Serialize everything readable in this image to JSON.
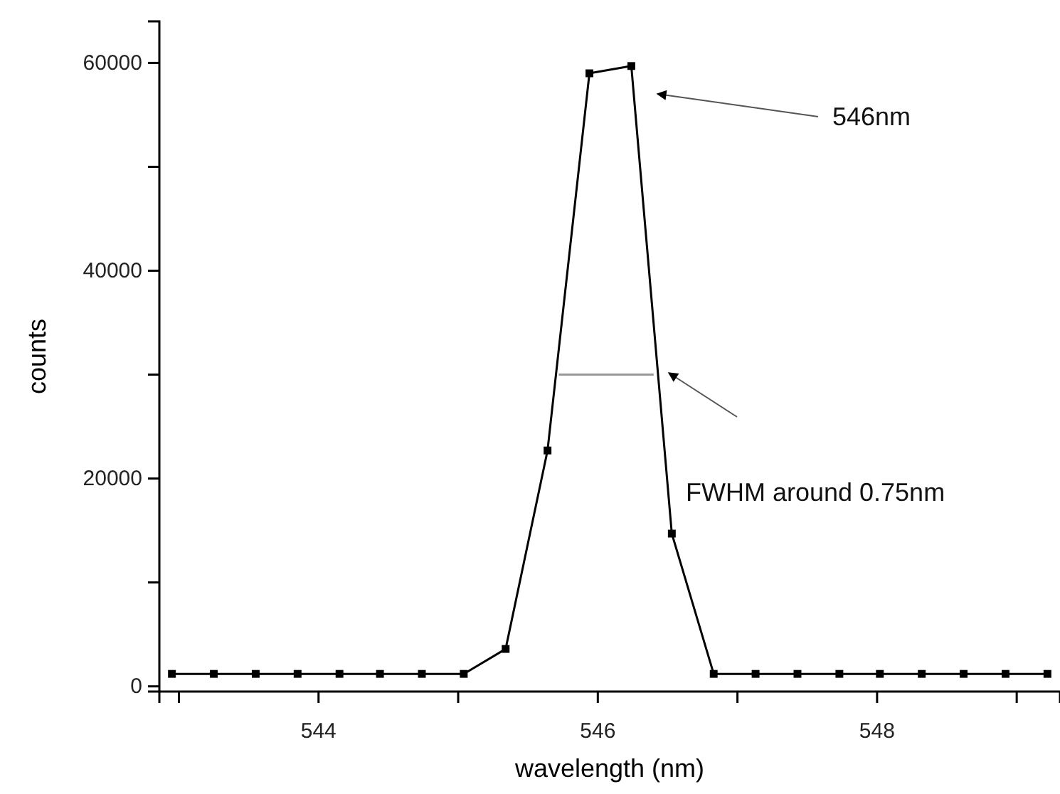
{
  "chart_data": {
    "type": "line",
    "xlabel": "wavelength (nm)",
    "ylabel": "counts",
    "xlim": [
      542.86,
      549.31
    ],
    "ylim": [
      -500,
      64000
    ],
    "xticks": [
      {
        "value": 543,
        "label": null
      },
      544,
      {
        "value": 545,
        "label": null
      },
      546,
      {
        "value": 547,
        "label": null
      },
      548,
      {
        "value": 549,
        "label": null
      }
    ],
    "yticks": [
      0,
      {
        "value": 10000,
        "label": null
      },
      20000,
      {
        "value": 30000,
        "label": null
      },
      40000,
      {
        "value": 50000,
        "label": null
      },
      60000
    ],
    "grid": false,
    "marker": "square",
    "line_style": "solid",
    "series": [
      {
        "color": "#000000",
        "x": [
          542.95,
          543.25,
          543.55,
          543.85,
          544.15,
          544.44,
          544.74,
          545.04,
          545.34,
          545.64,
          545.94,
          546.24,
          546.53,
          546.83,
          547.13,
          547.43,
          547.73,
          548.02,
          548.32,
          548.62,
          548.92,
          549.22
        ],
        "values": [
          1200,
          1200,
          1200,
          1200,
          1200,
          1200,
          1200,
          1200,
          3600,
          22700,
          59000,
          59700,
          14700,
          1200,
          1200,
          1200,
          1200,
          1200,
          1200,
          1200,
          1200,
          1200
        ]
      },
      {
        "type": "line",
        "color": "#999999",
        "marker": "none",
        "x": [
          545.72,
          546.4
        ],
        "values": [
          30000,
          30000
        ]
      }
    ],
    "annotations": [
      "546nm",
      "FWHM around 0.75nm"
    ]
  }
}
